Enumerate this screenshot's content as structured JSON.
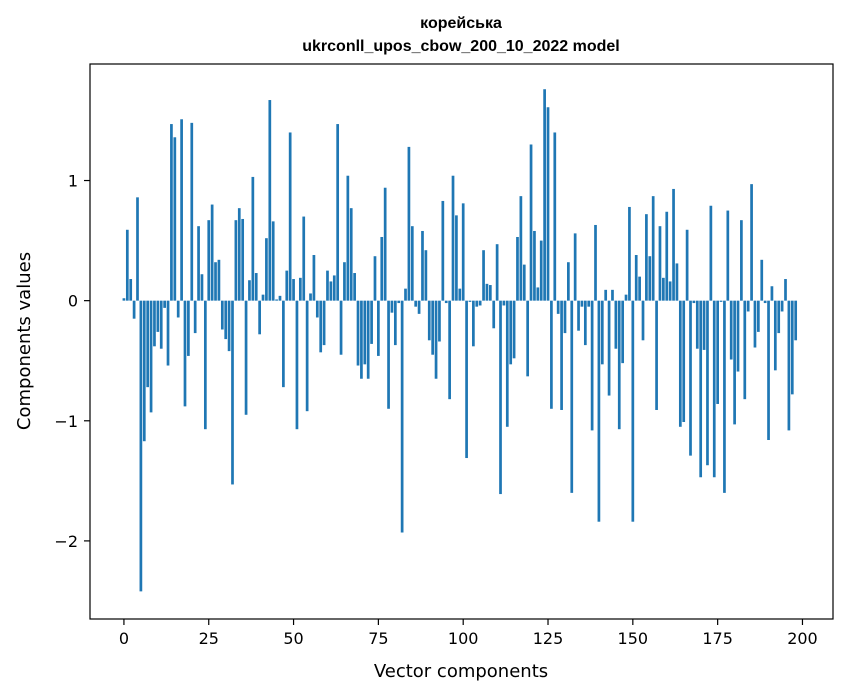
{
  "chart_data": {
    "type": "bar",
    "title_line1": "корейська",
    "title_line2": "ukrconll_upos_cbow_200_10_2022 model",
    "xlabel": "Vector components",
    "ylabel": "Components values",
    "xlim": [
      -10,
      209
    ],
    "ylim": [
      -2.65,
      1.97
    ],
    "xticks": [
      0,
      25,
      50,
      75,
      100,
      125,
      150,
      175,
      200
    ],
    "yticks": [
      -2,
      -1,
      0,
      1
    ],
    "ytick_labels": [
      "−2",
      "−1",
      "0",
      "1"
    ],
    "bar_color": "#1f77b4",
    "series": [
      {
        "name": "components",
        "values": [
          0.02,
          0.59,
          0.18,
          -0.15,
          0.86,
          -2.42,
          -1.17,
          -0.72,
          -0.93,
          -0.38,
          -0.26,
          -0.4,
          -0.06,
          -0.54,
          1.47,
          1.36,
          -0.14,
          1.51,
          -0.88,
          -0.46,
          1.48,
          -0.27,
          0.62,
          0.22,
          -1.07,
          0.67,
          0.8,
          0.32,
          0.34,
          -0.24,
          -0.32,
          -0.42,
          -1.53,
          0.67,
          0.77,
          0.68,
          -0.95,
          0.17,
          1.03,
          0.23,
          -0.28,
          0.05,
          0.52,
          1.67,
          0.66,
          0.01,
          0.04,
          -0.72,
          0.25,
          1.4,
          0.18,
          -1.07,
          0.19,
          0.7,
          -0.92,
          0.06,
          0.38,
          -0.14,
          -0.43,
          -0.37,
          0.25,
          0.16,
          0.21,
          1.47,
          -0.45,
          0.32,
          1.04,
          0.77,
          0.23,
          -0.54,
          -0.65,
          -0.53,
          -0.65,
          -0.36,
          0.37,
          -0.46,
          0.53,
          0.94,
          -0.9,
          -0.1,
          -0.37,
          -0.02,
          -1.93,
          0.1,
          1.28,
          0.62,
          -0.05,
          -0.11,
          0.58,
          0.42,
          -0.33,
          -0.45,
          -0.65,
          -0.34,
          0.83,
          -0.02,
          -0.82,
          1.04,
          0.71,
          0.1,
          0.81,
          -1.31,
          -0.01,
          -0.38,
          -0.05,
          -0.04,
          0.42,
          0.14,
          0.13,
          -0.23,
          0.47,
          -1.61,
          -0.04,
          -1.05,
          -0.53,
          -0.48,
          0.53,
          0.87,
          0.3,
          -0.63,
          1.3,
          0.58,
          0.11,
          0.5,
          1.76,
          1.61,
          -0.9,
          1.4,
          -0.11,
          -0.91,
          -0.27,
          0.32,
          -1.6,
          0.56,
          -0.25,
          -0.05,
          -0.37,
          -0.05,
          -1.08,
          0.63,
          -1.84,
          -0.53,
          0.09,
          -0.79,
          0.09,
          -0.4,
          -1.07,
          -0.52,
          0.05,
          0.78,
          -1.84,
          0.38,
          0.2,
          -0.33,
          0.72,
          0.37,
          0.87,
          -0.91,
          0.62,
          0.19,
          0.74,
          0.16,
          0.93,
          0.31,
          -1.05,
          -1.01,
          0.59,
          -1.29,
          -0.02,
          -0.4,
          -1.47,
          -0.41,
          -1.37,
          0.79,
          -1.47,
          -0.86,
          -0.01,
          -1.6,
          0.75,
          -0.49,
          -1.03,
          -0.59,
          0.67,
          -0.82,
          -0.09,
          0.97,
          -0.39,
          -0.26,
          0.34,
          -0.02,
          -1.16,
          0.12,
          -0.58,
          -0.27,
          -0.09,
          0.18,
          -1.08,
          -0.78,
          -0.33
        ]
      }
    ]
  }
}
